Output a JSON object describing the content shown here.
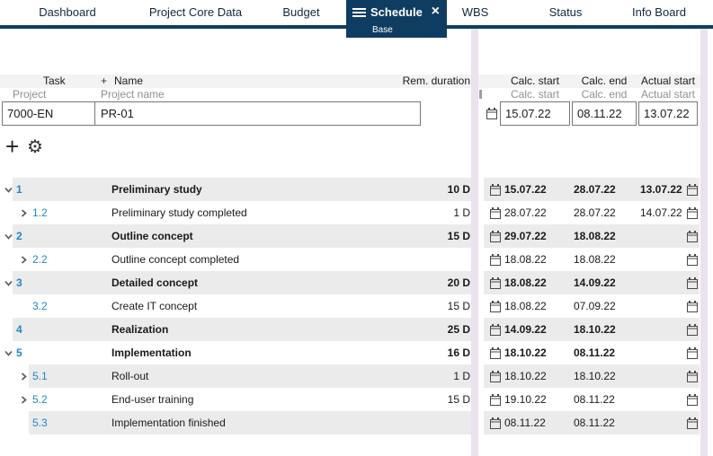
{
  "tabs": [
    {
      "label": "Dashboard",
      "active": false
    },
    {
      "label": "Project Core Data",
      "active": false
    },
    {
      "label": "Budget",
      "active": false
    },
    {
      "label": "Schedule",
      "active": true,
      "subtitle": "Base",
      "close_label": "×"
    },
    {
      "label": "WBS",
      "active": false
    },
    {
      "label": "Status",
      "active": false
    },
    {
      "label": "Info Board",
      "active": false
    }
  ],
  "grid": {
    "left_headers": {
      "task": "Task",
      "plus": "+",
      "name": "Name",
      "rem_duration": "Rem. duration"
    },
    "left_subheaders": {
      "task": "Project",
      "name": "Project name"
    },
    "right_headers": {
      "calc_start": "Calc. start",
      "calc_end": "Calc. end",
      "actual_start": "Actual start"
    },
    "right_subheaders": {
      "calc_start": "Calc. start",
      "calc_end": "Calc. end",
      "actual_start": "Actual start"
    },
    "filter_row": {
      "task": "7000-EN",
      "name": "PR-01",
      "calc_start": "15.07.22",
      "calc_end": "08.11.22",
      "actual_start": "13.07.22"
    }
  },
  "toolbar": {
    "add_icon": "+",
    "settings_icon": "⚙"
  },
  "rows": [
    {
      "num": "1",
      "level": 0,
      "chevron": "down",
      "name": "Preliminary study",
      "duration": "10 D",
      "calc_start": "15.07.22",
      "calc_end": "28.07.22",
      "actual_start": "13.07.22",
      "bold": true,
      "shaded": true
    },
    {
      "num": "1.2",
      "level": 1,
      "chevron": "right",
      "name": "Preliminary study completed",
      "duration": "1 D",
      "calc_start": "28.07.22",
      "calc_end": "28.07.22",
      "actual_start": "14.07.22",
      "bold": false,
      "shaded": false
    },
    {
      "num": "2",
      "level": 0,
      "chevron": "down",
      "name": "Outline concept",
      "duration": "15 D",
      "calc_start": "29.07.22",
      "calc_end": "18.08.22",
      "actual_start": "",
      "bold": true,
      "shaded": true
    },
    {
      "num": "2.2",
      "level": 1,
      "chevron": "right",
      "name": "Outline concept completed",
      "duration": "",
      "calc_start": "18.08.22",
      "calc_end": "18.08.22",
      "actual_start": "",
      "bold": false,
      "shaded": false
    },
    {
      "num": "3",
      "level": 0,
      "chevron": "down",
      "name": "Detailed concept",
      "duration": "20 D",
      "calc_start": "18.08.22",
      "calc_end": "14.09.22",
      "actual_start": "",
      "bold": true,
      "shaded": true
    },
    {
      "num": "3.2",
      "level": 1,
      "chevron": "none",
      "name": "Create IT concept",
      "duration": "15 D",
      "calc_start": "18.08.22",
      "calc_end": "07.09.22",
      "actual_start": "",
      "bold": false,
      "shaded": false
    },
    {
      "num": "4",
      "level": 0,
      "chevron": "none",
      "name": "Realization",
      "duration": "25 D",
      "calc_start": "14.09.22",
      "calc_end": "18.10.22",
      "actual_start": "",
      "bold": true,
      "shaded": true
    },
    {
      "num": "5",
      "level": 0,
      "chevron": "down",
      "name": "Implementation",
      "duration": "16 D",
      "calc_start": "18.10.22",
      "calc_end": "08.11.22",
      "actual_start": "",
      "bold": true,
      "shaded": false
    },
    {
      "num": "5.1",
      "level": 1,
      "chevron": "right",
      "name": "Roll-out",
      "duration": "1 D",
      "calc_start": "18.10.22",
      "calc_end": "18.10.22",
      "actual_start": "",
      "bold": false,
      "shaded": true
    },
    {
      "num": "5.2",
      "level": 1,
      "chevron": "right",
      "name": "End-user training",
      "duration": "15 D",
      "calc_start": "19.10.22",
      "calc_end": "08.11.22",
      "actual_start": "",
      "bold": false,
      "shaded": false
    },
    {
      "num": "5.3",
      "level": 1,
      "chevron": "none",
      "name": "Implementation finished",
      "duration": "",
      "calc_start": "08.11.22",
      "calc_end": "08.11.22",
      "actual_start": "",
      "bold": false,
      "shaded": true
    }
  ],
  "colors": {
    "accent_navy": "#0f3d62",
    "link_blue": "#1e87c8",
    "row_stripe": "#ebebeb",
    "splitter_lavender": "#eae2ec",
    "header_bg": "#f3f3f3",
    "muted_text": "#909090"
  }
}
